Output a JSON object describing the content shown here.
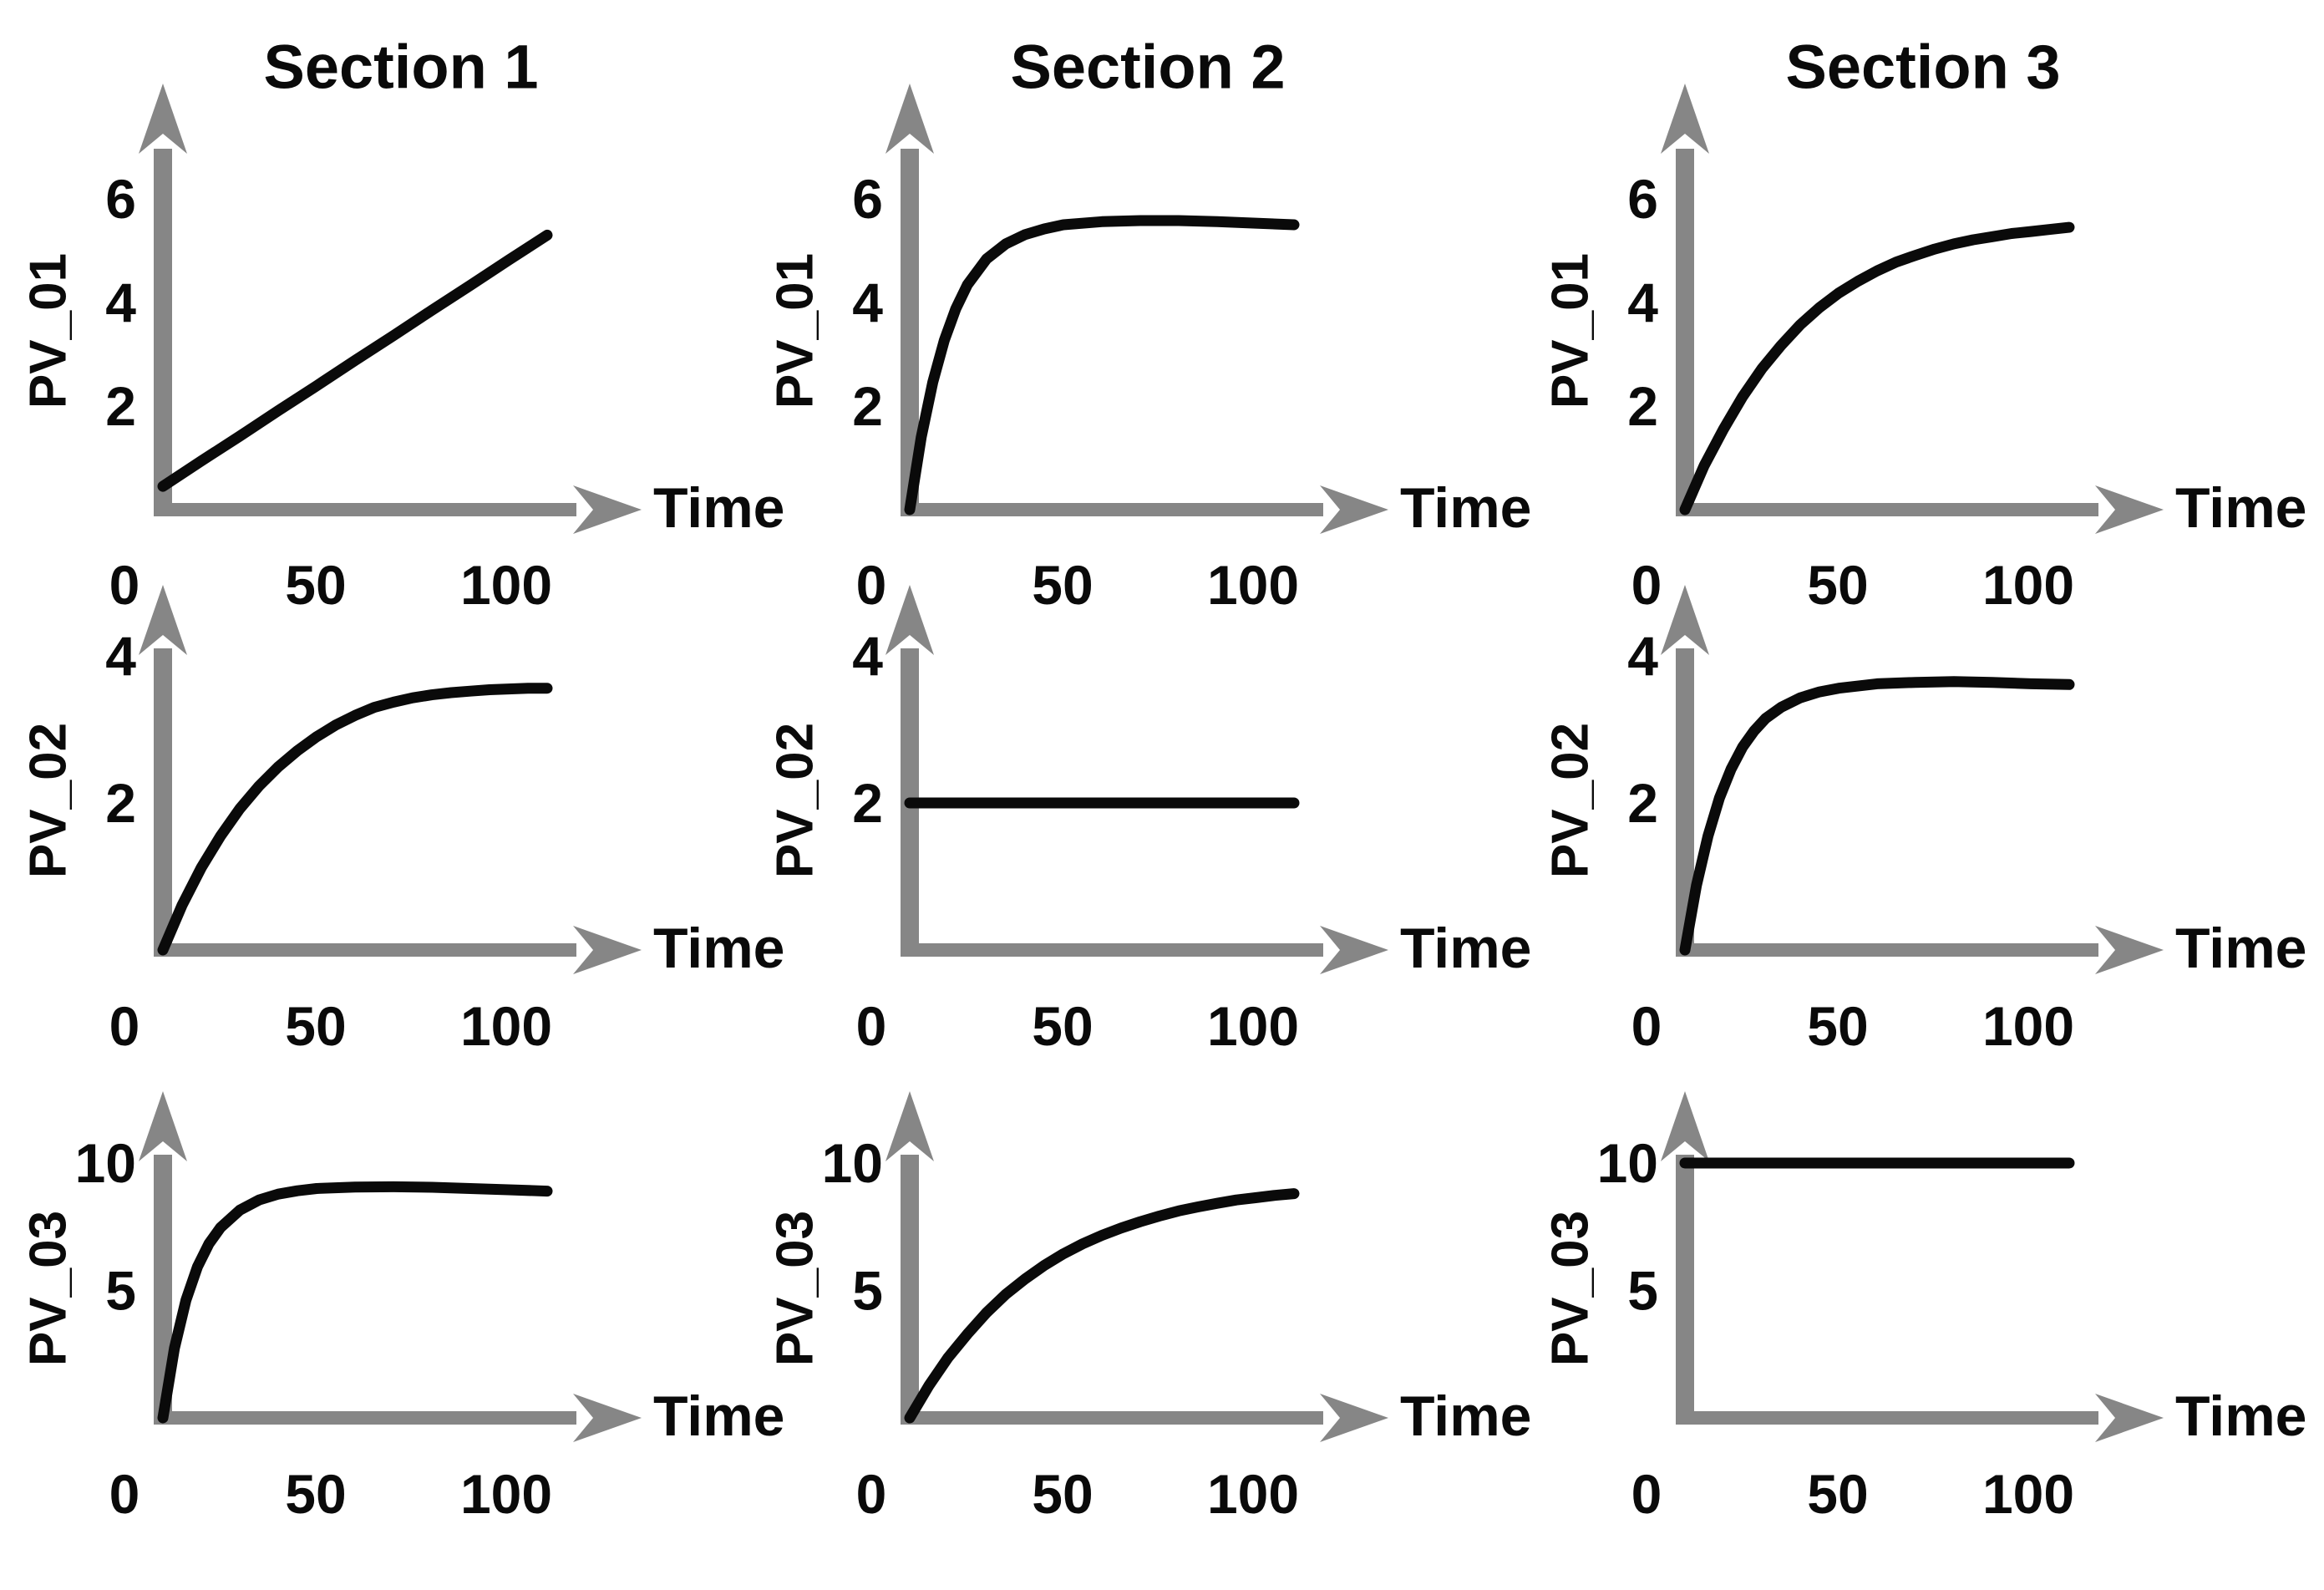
{
  "figure": {
    "column_titles": [
      "Section 1",
      "Section 2",
      "Section 3"
    ],
    "row_labels": [
      "PV_01",
      "PV_02",
      "PV_03"
    ],
    "x_axis_label": "Time",
    "x_ticks": [
      0,
      50,
      100
    ]
  },
  "colors": {
    "background": "#ffffff",
    "axis": "#868686",
    "curve": "#0a0a0a",
    "text": "#0a0a0a"
  },
  "chart_data": [
    {
      "id": "section1-pv01",
      "type": "line",
      "row": 0,
      "col": 0,
      "title": "Section 1",
      "ylabel": "PV_01",
      "xlabel": "Time",
      "xticks": [
        0,
        50,
        100
      ],
      "yticks": [
        2,
        4,
        6
      ],
      "ylim": [
        0,
        7
      ],
      "xlim": [
        0,
        120
      ],
      "shape": "linear ramp",
      "x": [
        0,
        10,
        20,
        30,
        40,
        50,
        60,
        70,
        80,
        90,
        100
      ],
      "y": [
        0.45,
        0.94,
        1.42,
        1.91,
        2.39,
        2.88,
        3.36,
        3.85,
        4.33,
        4.82,
        5.3
      ]
    },
    {
      "id": "section2-pv01",
      "type": "line",
      "row": 0,
      "col": 1,
      "title": "Section 2",
      "ylabel": "PV_01",
      "xlabel": "Time",
      "xticks": [
        0,
        50,
        100
      ],
      "yticks": [
        2,
        4,
        6
      ],
      "ylim": [
        0,
        7
      ],
      "xlim": [
        0,
        120
      ],
      "shape": "fast saturation to ~5.6 with slight terminal dip",
      "x": [
        0,
        3,
        6,
        9,
        12,
        15,
        20,
        25,
        30,
        35,
        40,
        50,
        60,
        70,
        80,
        90,
        100
      ],
      "y": [
        0,
        1.4,
        2.46,
        3.27,
        3.88,
        4.34,
        4.84,
        5.13,
        5.31,
        5.42,
        5.5,
        5.56,
        5.58,
        5.58,
        5.56,
        5.53,
        5.5
      ]
    },
    {
      "id": "section3-pv01",
      "type": "line",
      "row": 0,
      "col": 2,
      "title": "Section 3",
      "ylabel": "PV_01",
      "xlabel": "Time",
      "xticks": [
        0,
        50,
        100
      ],
      "yticks": [
        2,
        4,
        6
      ],
      "ylim": [
        0,
        7
      ],
      "xlim": [
        0,
        120
      ],
      "shape": "slow saturation rising to ~5.45",
      "x": [
        0,
        5,
        10,
        15,
        20,
        25,
        30,
        35,
        40,
        45,
        50,
        55,
        60,
        65,
        70,
        75,
        80,
        85,
        90,
        95,
        100
      ],
      "y": [
        0,
        0.85,
        1.55,
        2.18,
        2.72,
        3.17,
        3.57,
        3.9,
        4.18,
        4.41,
        4.61,
        4.78,
        4.91,
        5.03,
        5.13,
        5.21,
        5.27,
        5.33,
        5.37,
        5.41,
        5.45
      ]
    },
    {
      "id": "section1-pv02",
      "type": "line",
      "row": 1,
      "col": 0,
      "title": "Section 1",
      "ylabel": "PV_02",
      "xlabel": "Time",
      "xticks": [
        0,
        50,
        100
      ],
      "yticks": [
        2,
        4
      ],
      "ylim": [
        0,
        4.6
      ],
      "xlim": [
        0,
        120
      ],
      "shape": "medium saturation to ~3.55",
      "x": [
        0,
        5,
        10,
        15,
        20,
        25,
        30,
        35,
        40,
        45,
        50,
        55,
        60,
        65,
        70,
        75,
        80,
        85,
        90,
        95,
        100
      ],
      "y": [
        0,
        0.61,
        1.12,
        1.55,
        1.92,
        2.23,
        2.49,
        2.71,
        2.9,
        3.06,
        3.19,
        3.3,
        3.37,
        3.43,
        3.47,
        3.5,
        3.52,
        3.54,
        3.55,
        3.56,
        3.56
      ]
    },
    {
      "id": "section2-pv02",
      "type": "line",
      "row": 1,
      "col": 1,
      "title": "Section 2",
      "ylabel": "PV_02",
      "xlabel": "Time",
      "xticks": [
        0,
        50,
        100
      ],
      "yticks": [
        2,
        4
      ],
      "ylim": [
        0,
        4.6
      ],
      "xlim": [
        0,
        120
      ],
      "shape": "constant",
      "x": [
        0,
        100
      ],
      "y": [
        2,
        2
      ]
    },
    {
      "id": "section3-pv02",
      "type": "line",
      "row": 1,
      "col": 2,
      "title": "Section 3",
      "ylabel": "PV_02",
      "xlabel": "Time",
      "xticks": [
        0,
        50,
        100
      ],
      "yticks": [
        2,
        4
      ],
      "ylim": [
        0,
        4.6
      ],
      "xlim": [
        0,
        120
      ],
      "shape": "fast saturation to ~3.65 with slight terminal dip",
      "x": [
        0,
        3,
        6,
        9,
        12,
        15,
        18,
        21,
        25,
        30,
        35,
        40,
        50,
        60,
        70,
        80,
        90,
        100
      ],
      "y": [
        0,
        0.88,
        1.55,
        2.07,
        2.46,
        2.76,
        2.98,
        3.15,
        3.3,
        3.43,
        3.51,
        3.56,
        3.62,
        3.64,
        3.65,
        3.64,
        3.62,
        3.61
      ]
    },
    {
      "id": "section1-pv03",
      "type": "line",
      "row": 2,
      "col": 0,
      "title": "Section 1",
      "ylabel": "PV_03",
      "xlabel": "Time",
      "xticks": [
        0,
        50,
        100
      ],
      "yticks": [
        5,
        10
      ],
      "ylim": [
        0,
        11.5
      ],
      "xlim": [
        0,
        120
      ],
      "shape": "fast saturation to ~9.05 with slight terminal dip",
      "x": [
        0,
        3,
        6,
        9,
        12,
        15,
        20,
        25,
        30,
        35,
        40,
        50,
        60,
        70,
        80,
        90,
        100
      ],
      "y": [
        0,
        2.73,
        4.62,
        5.93,
        6.84,
        7.47,
        8.15,
        8.55,
        8.78,
        8.91,
        9.0,
        9.06,
        9.07,
        9.05,
        9.0,
        8.95,
        8.9
      ]
    },
    {
      "id": "section2-pv03",
      "type": "line",
      "row": 2,
      "col": 1,
      "title": "Section 2",
      "ylabel": "PV_03",
      "xlabel": "Time",
      "xticks": [
        0,
        50,
        100
      ],
      "yticks": [
        5,
        10
      ],
      "ylim": [
        0,
        11.5
      ],
      "xlim": [
        0,
        120
      ],
      "shape": "medium saturation rising to ~8.8",
      "x": [
        0,
        5,
        10,
        15,
        20,
        25,
        30,
        35,
        40,
        45,
        50,
        55,
        60,
        65,
        70,
        75,
        80,
        85,
        90,
        95,
        100
      ],
      "y": [
        0,
        1.27,
        2.37,
        3.29,
        4.13,
        4.85,
        5.45,
        5.98,
        6.44,
        6.83,
        7.16,
        7.45,
        7.7,
        7.92,
        8.12,
        8.28,
        8.42,
        8.55,
        8.64,
        8.73,
        8.8
      ]
    },
    {
      "id": "section3-pv03",
      "type": "line",
      "row": 2,
      "col": 2,
      "title": "Section 3",
      "ylabel": "PV_03",
      "xlabel": "Time",
      "xticks": [
        0,
        50,
        100
      ],
      "yticks": [
        5,
        10
      ],
      "ylim": [
        0,
        11.5
      ],
      "xlim": [
        0,
        120
      ],
      "shape": "constant",
      "x": [
        0,
        100
      ],
      "y": [
        10,
        10
      ]
    }
  ]
}
